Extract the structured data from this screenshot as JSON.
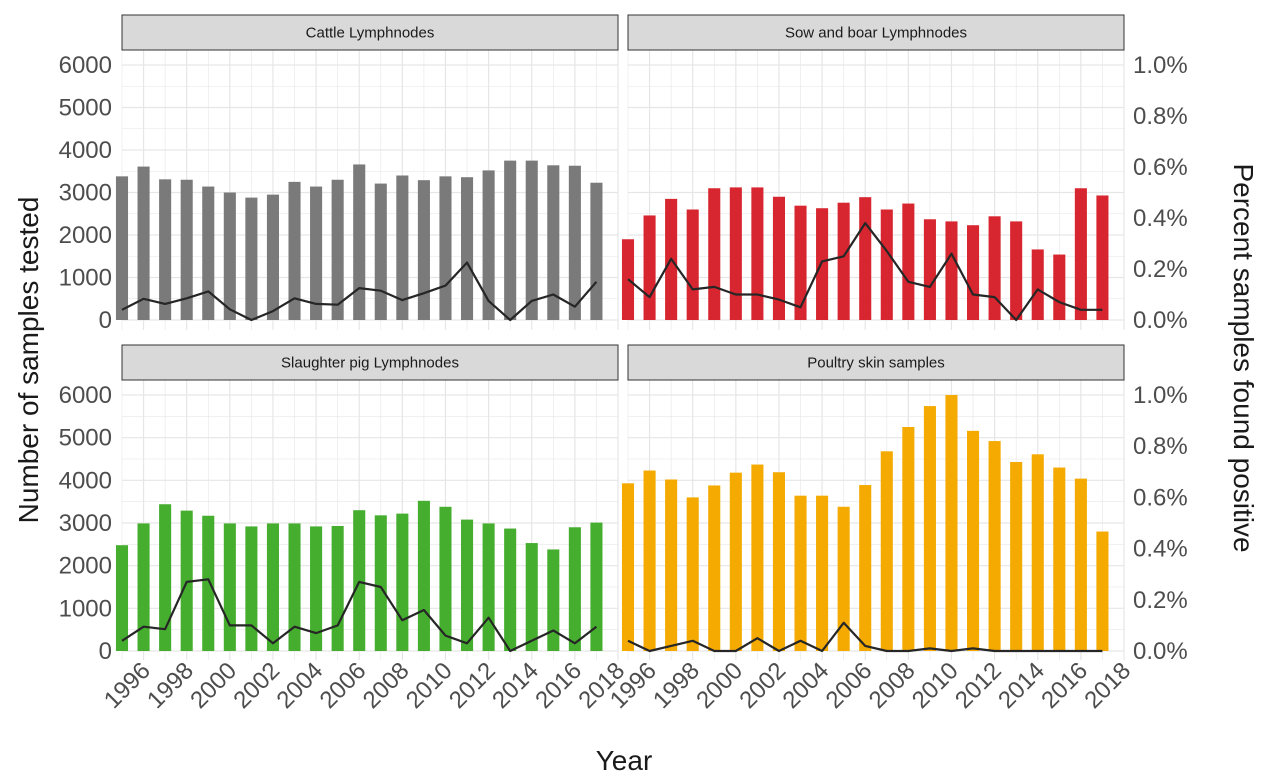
{
  "chart_data": {
    "type": "bar",
    "layout": "facet-grid-2x2",
    "xlabel": "Year",
    "ylabel": "Number of samples tested",
    "y2label": "Percent samples found positive",
    "ylim": [
      0,
      6000
    ],
    "y2lim": [
      0,
      0.01
    ],
    "xlim": [
      1995,
      2018
    ],
    "x_ticks": [
      1996,
      1998,
      2000,
      2002,
      2004,
      2006,
      2008,
      2010,
      2012,
      2014,
      2016,
      2018
    ],
    "y_ticks": [
      0,
      1000,
      2000,
      3000,
      4000,
      5000,
      6000
    ],
    "y_tick_labels": [
      "0",
      "1000",
      "2000",
      "3000",
      "4000",
      "5000",
      "6000"
    ],
    "y2_ticks": [
      0,
      0.002,
      0.004,
      0.006,
      0.008,
      0.01
    ],
    "y2_tick_labels": [
      "0.0%",
      "0.2%",
      "0.4%",
      "0.6%",
      "0.8%",
      "1.0%"
    ],
    "grid": true,
    "line_color": "#262626",
    "strip_fill": "#d9d9d9",
    "years": [
      1995,
      1996,
      1997,
      1998,
      1999,
      2000,
      2001,
      2002,
      2003,
      2004,
      2005,
      2006,
      2007,
      2008,
      2009,
      2010,
      2011,
      2012,
      2013,
      2014,
      2015,
      2016,
      2017
    ],
    "panels": [
      {
        "name": "Cattle Lymphnodes",
        "bar_color": "#7a7a7a",
        "samples": [
          3380,
          3610,
          3310,
          3300,
          3140,
          3000,
          2880,
          2950,
          3250,
          3140,
          3300,
          3660,
          3210,
          3400,
          3290,
          3380,
          3360,
          3520,
          3750,
          3750,
          3640,
          3630,
          3230
        ],
        "percent_positive": [
          0.0004,
          0.00083,
          0.00063,
          0.00085,
          0.00112,
          0.00042,
          0.0,
          0.00035,
          0.00085,
          0.00063,
          0.0006,
          0.00125,
          0.00115,
          0.00078,
          0.00105,
          0.00135,
          0.00225,
          0.00075,
          0.0,
          0.00075,
          0.001,
          0.00052,
          0.0015
        ]
      },
      {
        "name": "Sow and boar Lymphnodes",
        "bar_color": "#d7262f",
        "samples": [
          1900,
          2460,
          2850,
          2600,
          3100,
          3120,
          3120,
          2900,
          2690,
          2630,
          2760,
          2890,
          2600,
          2740,
          2370,
          2320,
          2230,
          2440,
          2320,
          1660,
          1540,
          3100,
          2930
        ],
        "percent_positive": [
          0.0016,
          0.0009,
          0.0024,
          0.0012,
          0.0013,
          0.001,
          0.001,
          0.0008,
          0.0005,
          0.0023,
          0.0025,
          0.0038,
          0.0027,
          0.0015,
          0.0013,
          0.0026,
          0.001,
          0.0009,
          0.0,
          0.0012,
          0.0007,
          0.0004,
          0.0004
        ]
      },
      {
        "name": "Slaughter pig Lymphnodes",
        "bar_color": "#46ae2f",
        "samples": [
          2480,
          2990,
          3440,
          3290,
          3170,
          2990,
          2920,
          2990,
          2990,
          2920,
          2930,
          3300,
          3180,
          3220,
          3520,
          3380,
          3080,
          2990,
          2870,
          2530,
          2380,
          2900,
          3010
        ],
        "percent_positive": [
          0.0004,
          0.00095,
          0.00085,
          0.0027,
          0.0028,
          0.001,
          0.001,
          0.0003,
          0.00095,
          0.0007,
          0.001,
          0.0027,
          0.0025,
          0.0012,
          0.0016,
          0.0006,
          0.0003,
          0.0013,
          0.0,
          0.0004,
          0.0008,
          0.0003,
          0.00095
        ]
      },
      {
        "name": "Poultry skin samples",
        "bar_color": "#f4aa00",
        "samples": [
          3930,
          4230,
          4020,
          3600,
          3880,
          4180,
          4370,
          4190,
          3640,
          3640,
          3380,
          3890,
          4680,
          5250,
          5740,
          6000,
          5160,
          4920,
          4430,
          4610,
          4300,
          4040,
          2800
        ],
        "percent_positive": [
          0.0004,
          0.0,
          0.0002,
          0.0004,
          0.0,
          0.0,
          0.0005,
          0.0,
          0.0004,
          0.0,
          0.0011,
          0.0002,
          0.0,
          0.0,
          0.0001,
          0.0,
          0.0001,
          0.0,
          0.0,
          0.0,
          0.0,
          0.0,
          0.0
        ]
      }
    ]
  }
}
